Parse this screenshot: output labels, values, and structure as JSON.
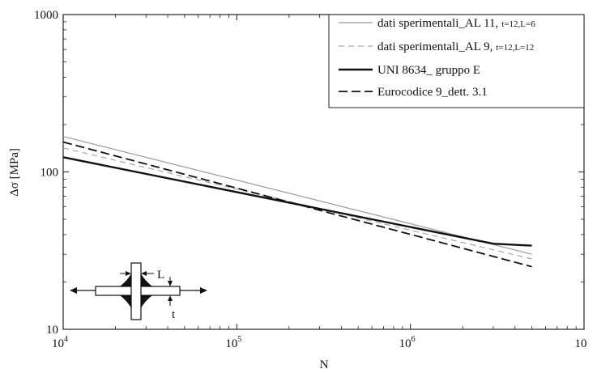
{
  "chart_data": {
    "type": "line",
    "title": "",
    "xlabel": "N",
    "ylabel": "Δσ [MPa]",
    "x_scale": "log",
    "y_scale": "log",
    "xlim": [
      10000,
      10000000
    ],
    "ylim": [
      10,
      1000
    ],
    "grid": false,
    "legend_position": "top-right",
    "x_ticks": [
      {
        "base": "10",
        "exp": "4"
      },
      {
        "base": "10",
        "exp": "5"
      },
      {
        "base": "10",
        "exp": "6"
      },
      {
        "base": "10",
        "exp": ""
      }
    ],
    "y_ticks": [
      "10",
      "100",
      "1000"
    ],
    "series": [
      {
        "name": "dati sperimentali_AL 11,",
        "name_sub": "t=12,L=6",
        "color": "#9a9a9a",
        "dash": "solid",
        "x": [
          10000,
          5000000
        ],
        "y": [
          168,
          30
        ]
      },
      {
        "name": "dati sperimentali_AL 9,",
        "name_sub": "t=12,L=12",
        "color": "#a6a6a6",
        "dash": "dashed",
        "x": [
          10000,
          5000000
        ],
        "y": [
          142,
          28
        ]
      },
      {
        "name": "UNI 8634_ gruppo E",
        "name_sub": "",
        "color": "#111111",
        "dash": "solid-thick",
        "x": [
          10000,
          3000000,
          5000000
        ],
        "y": [
          124,
          35,
          34
        ]
      },
      {
        "name": "Eurocodice 9_dett. 3.1",
        "name_sub": "",
        "color": "#111111",
        "dash": "dashed-thick",
        "x": [
          10000,
          5000000
        ],
        "y": [
          155,
          25
        ]
      }
    ],
    "inset": {
      "dimension_L": "L",
      "dimension_t": "t"
    }
  }
}
